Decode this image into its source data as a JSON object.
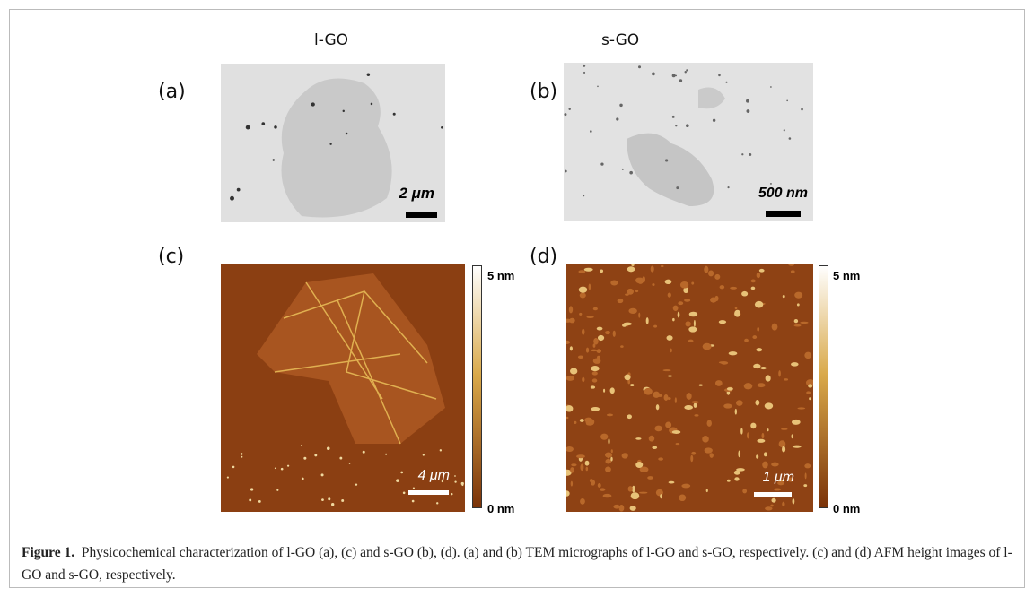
{
  "figure": {
    "panels": [
      {
        "label": "(a)",
        "title": "l-GO",
        "scale_bar": "2 μm"
      },
      {
        "label": "(b)",
        "title": "s-GO",
        "scale_bar": "500 nm"
      },
      {
        "label": "(c)",
        "scale_bar": "4 μm",
        "colorbar_max": "5 nm",
        "colorbar_min": "0 nm"
      },
      {
        "label": "(d)",
        "scale_bar": "1 μm",
        "colorbar_max": "5 nm",
        "colorbar_min": "0 nm"
      }
    ]
  },
  "caption": {
    "label": "Figure 1.",
    "text": "Physicochemical characterization of l-GO (a), (c) and s-GO (b), (d). (a) and (b) TEM micrographs of l-GO and s-GO, respectively. (c) and (d) AFM height images of l-GO and s-GO, respectively."
  }
}
